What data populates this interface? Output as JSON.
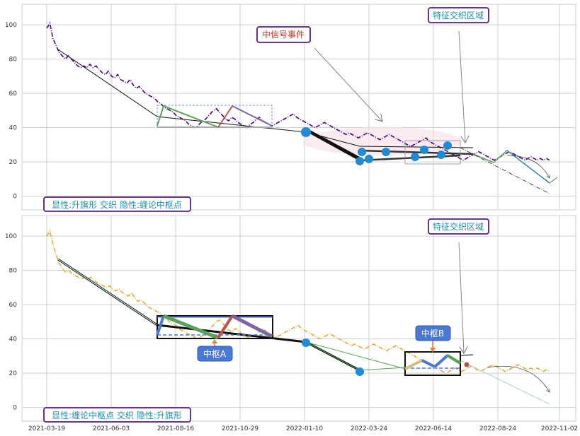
{
  "x_ticks": [
    "2021-03-19",
    "2021-06-03",
    "2021-08-16",
    "2021-10-29",
    "2022-01-10",
    "2022-03-24",
    "2022-06-14",
    "2022-08-24",
    "2022-11-02"
  ],
  "colors": {
    "series_top": "#4b0082",
    "series_bottom": "#e8a835",
    "marker": "#1f8ad6",
    "label_border": "#5a1a8a",
    "label_text_teal": "#1a8fb0",
    "label_text_red": "#c0392b",
    "pivot_fill": "#4a78d6"
  },
  "chart_data": [
    {
      "type": "line",
      "title": "",
      "ylim": [
        -8,
        112
      ],
      "y_ticks": [
        0,
        20,
        40,
        60,
        80,
        100
      ],
      "series": [
        {
          "values": [
            98,
            101,
            92,
            88,
            84,
            82,
            80,
            82,
            80,
            78,
            76,
            75,
            76,
            75,
            77,
            75,
            76,
            74,
            72,
            71,
            73,
            70,
            69,
            71,
            68,
            67,
            66,
            68,
            65,
            63,
            64,
            62,
            60,
            59,
            58,
            57,
            55,
            54,
            52,
            51,
            50,
            49,
            47,
            46,
            45,
            44,
            42,
            41,
            40,
            41,
            43,
            44,
            46,
            48,
            50,
            51,
            49,
            47,
            45,
            44,
            46,
            45,
            43,
            42,
            41,
            40,
            42,
            43,
            45,
            46,
            44,
            43,
            42,
            41,
            42,
            43,
            44,
            45,
            46,
            47,
            48,
            46,
            45,
            44,
            43,
            42,
            41,
            40,
            41,
            42,
            43,
            42,
            41,
            40,
            39,
            38,
            37,
            36,
            37,
            36,
            35,
            34,
            35,
            36,
            37,
            36,
            35,
            34,
            33,
            34,
            35,
            36,
            35,
            34,
            33,
            32,
            31,
            30,
            29,
            30,
            31,
            32,
            33,
            34,
            32,
            31,
            30,
            29,
            28,
            27,
            26,
            25,
            24,
            23,
            22,
            21,
            22,
            23,
            24,
            25,
            26,
            25,
            24,
            23,
            22,
            21,
            22,
            23,
            24,
            25,
            26,
            25,
            24,
            23,
            22,
            21,
            22,
            23,
            22,
            21,
            22,
            21,
            22,
            21
          ]
        }
      ],
      "labels": {
        "signal_event": "中信号事件",
        "feature_zone": "特征交织区域",
        "bottom_left": "显性:升旗形 交织 隐性:缠论中枢点"
      }
    },
    {
      "type": "line",
      "title": "",
      "ylim": [
        -8,
        112
      ],
      "y_ticks": [
        0,
        20,
        40,
        60,
        80,
        100
      ],
      "series": [
        {
          "values": [
            100,
            103,
            95,
            89,
            84,
            81,
            79,
            80,
            78,
            77,
            76,
            75,
            76,
            75,
            76,
            74,
            73,
            72,
            71,
            70,
            71,
            69,
            68,
            69,
            67,
            66,
            65,
            67,
            64,
            62,
            63,
            61,
            59,
            58,
            57,
            56,
            55,
            53,
            52,
            50,
            49,
            48,
            46,
            45,
            44,
            43,
            42,
            41,
            40,
            41,
            43,
            44,
            46,
            48,
            50,
            51,
            49,
            47,
            45,
            44,
            46,
            45,
            43,
            42,
            41,
            40,
            42,
            43,
            45,
            46,
            44,
            43,
            42,
            41,
            42,
            43,
            44,
            45,
            46,
            47,
            48,
            46,
            45,
            44,
            43,
            42,
            41,
            40,
            41,
            42,
            43,
            42,
            41,
            40,
            39,
            38,
            37,
            36,
            37,
            36,
            35,
            34,
            35,
            36,
            37,
            36,
            35,
            34,
            33,
            34,
            35,
            36,
            35,
            34,
            33,
            32,
            31,
            30,
            29,
            28,
            27,
            26,
            25,
            24,
            23,
            22,
            21,
            20,
            21,
            22,
            23,
            22,
            21,
            22,
            23,
            24,
            23,
            22,
            21,
            22,
            23,
            24,
            25,
            24,
            23,
            22,
            21,
            22,
            23,
            24,
            25,
            24,
            23,
            22,
            23,
            22,
            23,
            22,
            21,
            22,
            21
          ]
        }
      ],
      "labels": {
        "pivot_a": "中枢A",
        "pivot_b": "中枢B",
        "feature_zone": "特征交织区域",
        "bottom_left": "显性:缠论中枢点 交织 隐性:升旗形"
      }
    }
  ]
}
